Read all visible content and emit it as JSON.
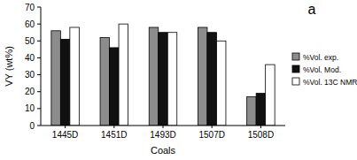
{
  "chart_data": {
    "type": "bar",
    "title": "a",
    "x_label": "Coals",
    "y_label": "VY (wt%)",
    "categories": [
      "1445D",
      "1451D",
      "1493D",
      "1507D",
      "1508D"
    ],
    "series": [
      {
        "name": "%Vol. exp.",
        "color": "#8c8c8c",
        "values": [
          56,
          52,
          58,
          58,
          17
        ]
      },
      {
        "name": "%Vol. Mod.",
        "color": "#111111",
        "values": [
          51,
          46,
          55,
          55,
          19
        ]
      },
      {
        "name": "%Vol. 13C NMR",
        "color": "#ffffff",
        "values": [
          58,
          60,
          55,
          50,
          36
        ]
      }
    ],
    "ylim": [
      0,
      70
    ],
    "yticks": [
      0,
      10,
      20,
      30,
      40,
      50,
      60,
      70
    ],
    "grid": false,
    "legend": "right"
  }
}
